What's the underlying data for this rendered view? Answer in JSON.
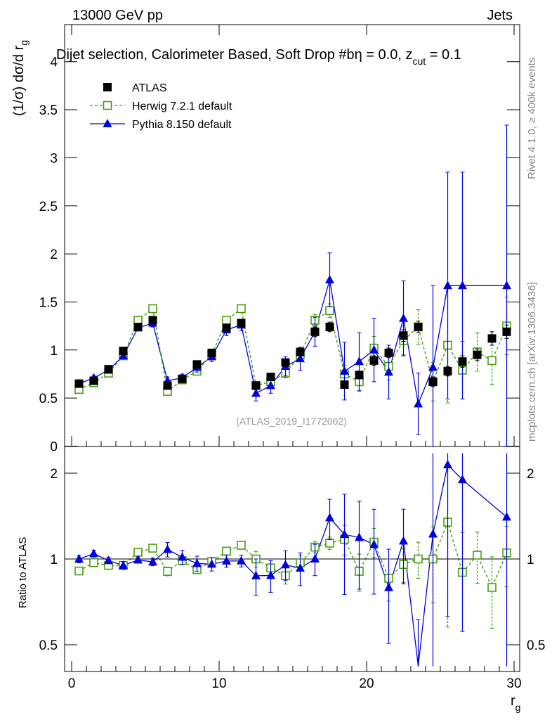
{
  "header": {
    "left": "13000 GeV pp",
    "right": "Jets"
  },
  "side_labels": {
    "top": "Rivet 4.1.0, ≥ 400k events",
    "bottom": "mcplots.cern.ch [arXiv:1306.3436]"
  },
  "chart_data": {
    "type": "scatter",
    "title": "Dijet selection, Calorimeter Based, Soft Drop #bη = 0.0, z",
    "title_sub": "cut",
    "title_tail": " = 0.1",
    "ylabel": "(1/σ) dσ/d r",
    "ylabel_sub": "g",
    "xlabel": "r",
    "xlabel_sub": "g",
    "ratio_ylabel": "Ratio to ATLAS",
    "watermark": "(ATLAS_2019_I1772062)",
    "xlim": [
      -0.5,
      30.5
    ],
    "ylim": [
      0,
      4.4
    ],
    "ratio_ylim": [
      0.42,
      2.35
    ],
    "xticks": [
      "0",
      "10",
      "20",
      "30"
    ],
    "yticks": [
      "0",
      "0.5",
      "1",
      "1.5",
      "2",
      "2.5",
      "3",
      "3.5",
      "4"
    ],
    "ratio_yticks": [
      "0.5",
      "1",
      "2"
    ],
    "x": [
      0.5,
      1.5,
      2.5,
      3.5,
      4.5,
      5.5,
      6.5,
      7.5,
      8.5,
      9.5,
      10.5,
      11.5,
      12.5,
      13.5,
      14.5,
      15.5,
      16.5,
      17.5,
      18.5,
      19.5,
      20.5,
      21.5,
      22.5,
      23.5,
      24.5,
      25.5,
      26.5,
      27.5,
      28.5,
      29.5
    ],
    "series": [
      {
        "name": "ATLAS",
        "color": "#000000",
        "marker": "square",
        "values": [
          0.65,
          0.68,
          0.8,
          0.99,
          1.24,
          1.31,
          0.63,
          0.7,
          0.85,
          0.97,
          1.23,
          1.28,
          0.63,
          0.72,
          0.87,
          0.98,
          1.19,
          1.24,
          0.64,
          0.74,
          0.89,
          0.97,
          1.15,
          1.24,
          0.67,
          0.78,
          0.88,
          0.95,
          1.12,
          1.19
        ],
        "errors": [
          0.02,
          0.02,
          0.02,
          0.03,
          0.03,
          0.04,
          0.02,
          0.02,
          0.03,
          0.03,
          0.04,
          0.04,
          0.03,
          0.03,
          0.04,
          0.04,
          0.05,
          0.05,
          0.04,
          0.04,
          0.05,
          0.05,
          0.06,
          0.06,
          0.05,
          0.05,
          0.06,
          0.06,
          0.07,
          0.07
        ]
      },
      {
        "name": "Herwig 7.2.1 default",
        "color": "#3a9a00",
        "marker": "open-square",
        "values": [
          0.59,
          0.66,
          0.76,
          0.94,
          1.31,
          1.43,
          0.57,
          0.69,
          0.78,
          0.95,
          1.31,
          1.43,
          0.63,
          0.67,
          0.76,
          0.95,
          1.31,
          1.41,
          0.75,
          0.67,
          1.02,
          0.83,
          1.1,
          1.24,
          0.67,
          1.05,
          0.79,
          0.98,
          0.89,
          1.25
        ],
        "errors": [
          0.01,
          0.01,
          0.02,
          0.02,
          0.02,
          0.03,
          0.02,
          0.02,
          0.02,
          0.03,
          0.03,
          0.03,
          0.04,
          0.04,
          0.05,
          0.06,
          0.06,
          0.07,
          0.09,
          0.1,
          0.12,
          0.14,
          0.15,
          0.18,
          0.2,
          0.6,
          0.3,
          0.2,
          0.25,
          0.3
        ]
      },
      {
        "name": "Pythia 8.150 default",
        "color": "#0000e0",
        "marker": "triangle",
        "values": [
          0.65,
          0.71,
          0.79,
          0.94,
          1.23,
          1.28,
          0.68,
          0.71,
          0.82,
          0.93,
          1.21,
          1.26,
          0.55,
          0.63,
          0.83,
          0.91,
          1.19,
          1.73,
          0.78,
          0.88,
          1.0,
          0.77,
          1.33,
          0.44,
          0.82,
          1.67,
          1.67,
          null,
          null,
          1.67
        ],
        "errors": [
          0.02,
          0.02,
          0.02,
          0.03,
          0.03,
          0.04,
          0.04,
          0.04,
          0.05,
          0.05,
          0.06,
          0.06,
          0.08,
          0.08,
          0.1,
          0.12,
          0.15,
          0.28,
          0.3,
          0.3,
          0.33,
          0.28,
          0.39,
          0.32,
          0.85,
          1.18,
          1.18,
          null,
          null,
          1.67
        ]
      }
    ]
  }
}
